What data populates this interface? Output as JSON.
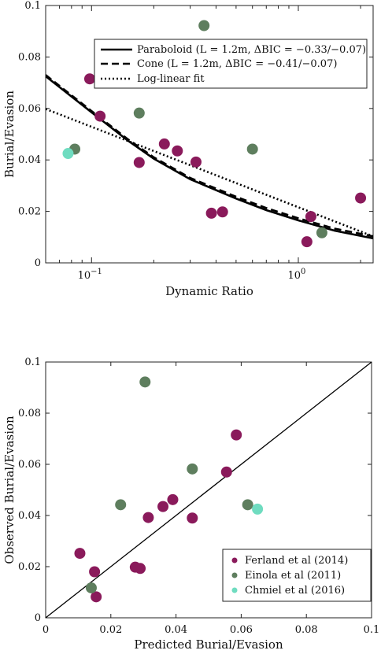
{
  "chart_data": [
    {
      "type": "line",
      "xscale": "log",
      "xlabel": "Dynamic Ratio",
      "ylabel": "Burial/Evasion",
      "xlim": [
        0.06,
        2.3
      ],
      "ylim": [
        0,
        0.1
      ],
      "xticks": [
        {
          "v": 0.1,
          "b": "10",
          "e": "−1"
        },
        {
          "v": 1,
          "b": "10",
          "e": "0"
        }
      ],
      "yticks": [
        {
          "v": 0,
          "t": "0"
        },
        {
          "v": 0.02,
          "t": "0.02"
        },
        {
          "v": 0.04,
          "t": "0.04"
        },
        {
          "v": 0.06,
          "t": "0.06"
        },
        {
          "v": 0.08,
          "t": "0.08"
        },
        {
          "v": 0.1,
          "t": "0.1"
        }
      ],
      "legend_position": "top-right",
      "lines": [
        {
          "name": "Paraboloid (L = 1.2m, ΔBIC = −0.33/−0.07)",
          "style": "solid",
          "x": [
            0.06,
            0.1,
            0.15,
            0.2,
            0.3,
            0.5,
            0.7,
            1.0,
            1.5,
            2.3
          ],
          "y": [
            0.0725,
            0.0585,
            0.0475,
            0.0405,
            0.0325,
            0.025,
            0.0205,
            0.0165,
            0.0125,
            0.0095
          ]
        },
        {
          "name": "Cone (L = 1.2m, ΔBIC = −0.41/−0.07)",
          "style": "dashed",
          "x": [
            0.06,
            0.1,
            0.15,
            0.2,
            0.3,
            0.5,
            0.7,
            1.0,
            1.5,
            2.3
          ],
          "y": [
            0.073,
            0.059,
            0.048,
            0.041,
            0.033,
            0.0257,
            0.0213,
            0.0173,
            0.0133,
            0.0103
          ]
        },
        {
          "name": "Log-linear fit",
          "style": "dotted",
          "x": [
            0.06,
            2.3
          ],
          "y": [
            0.0598,
            0.0103
          ]
        }
      ],
      "points": [
        {
          "x": 0.098,
          "y": 0.0715,
          "group": "Ferland"
        },
        {
          "x": 0.11,
          "y": 0.057,
          "group": "Ferland"
        },
        {
          "x": 0.17,
          "y": 0.039,
          "group": "Ferland"
        },
        {
          "x": 0.225,
          "y": 0.0462,
          "group": "Ferland"
        },
        {
          "x": 0.26,
          "y": 0.0435,
          "group": "Ferland"
        },
        {
          "x": 0.32,
          "y": 0.0392,
          "group": "Ferland"
        },
        {
          "x": 0.38,
          "y": 0.0193,
          "group": "Ferland"
        },
        {
          "x": 0.43,
          "y": 0.0198,
          "group": "Ferland"
        },
        {
          "x": 1.1,
          "y": 0.0082,
          "group": "Ferland"
        },
        {
          "x": 1.15,
          "y": 0.018,
          "group": "Ferland"
        },
        {
          "x": 2.0,
          "y": 0.0252,
          "group": "Ferland"
        },
        {
          "x": 0.083,
          "y": 0.0442,
          "group": "Einola"
        },
        {
          "x": 0.17,
          "y": 0.0582,
          "group": "Einola"
        },
        {
          "x": 0.35,
          "y": 0.0922,
          "group": "Einola"
        },
        {
          "x": 0.6,
          "y": 0.0442,
          "group": "Einola"
        },
        {
          "x": 1.3,
          "y": 0.0117,
          "group": "Einola"
        },
        {
          "x": 0.077,
          "y": 0.0425,
          "group": "Chmiel"
        }
      ]
    },
    {
      "type": "scatter",
      "xlabel": "Predicted Burial/Evasion",
      "ylabel": "Observed Burial/Evasion",
      "xlim": [
        0,
        0.1
      ],
      "ylim": [
        0,
        0.1
      ],
      "xticks": [
        {
          "v": 0,
          "t": "0"
        },
        {
          "v": 0.02,
          "t": "0.02"
        },
        {
          "v": 0.04,
          "t": "0.04"
        },
        {
          "v": 0.06,
          "t": "0.06"
        },
        {
          "v": 0.08,
          "t": "0.08"
        },
        {
          "v": 0.1,
          "t": "0.1"
        }
      ],
      "yticks": [
        {
          "v": 0,
          "t": "0"
        },
        {
          "v": 0.02,
          "t": "0.02"
        },
        {
          "v": 0.04,
          "t": "0.04"
        },
        {
          "v": 0.06,
          "t": "0.06"
        },
        {
          "v": 0.08,
          "t": "0.08"
        },
        {
          "v": 0.1,
          "t": "0.1"
        }
      ],
      "legend_position": "bottom-right",
      "reference_line": {
        "x": [
          0,
          0.1
        ],
        "y": [
          0,
          0.1
        ]
      },
      "series": [
        {
          "name": "Ferland et al (2014)",
          "color": "#8a1a5b",
          "x": [
            0.0585,
            0.0555,
            0.045,
            0.039,
            0.036,
            0.0315,
            0.0275,
            0.029,
            0.0155,
            0.015,
            0.0105
          ],
          "y": [
            0.0715,
            0.057,
            0.039,
            0.0462,
            0.0435,
            0.0392,
            0.0198,
            0.0193,
            0.0082,
            0.018,
            0.0252
          ]
        },
        {
          "name": "Einola et al (2011)",
          "color": "#5e7e5e",
          "x": [
            0.0305,
            0.045,
            0.023,
            0.062,
            0.014
          ],
          "y": [
            0.0922,
            0.0582,
            0.0442,
            0.0442,
            0.0117
          ]
        },
        {
          "name": "Chmiel et al (2016)",
          "color": "#6fdcc0",
          "x": [
            0.065
          ],
          "y": [
            0.0425
          ]
        }
      ]
    }
  ],
  "colors": {
    "Ferland": "#8a1a5b",
    "Einola": "#5e7e5e",
    "Chmiel": "#6fdcc0"
  }
}
